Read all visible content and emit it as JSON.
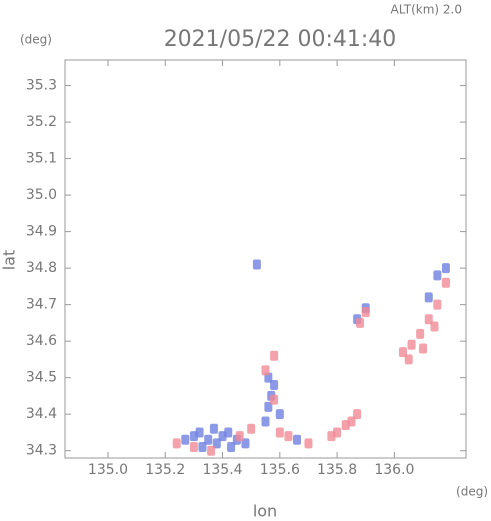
{
  "chart_data": {
    "type": "scatter",
    "title": "2021/05/22 00:41:40",
    "annotation": "ALT(km) 2.0",
    "y_unit": "(deg)",
    "x_unit": "(deg)",
    "xlabel": "lon",
    "ylabel": "lat",
    "xlim": [
      134.85,
      136.25
    ],
    "ylim": [
      34.28,
      35.37
    ],
    "xticks": [
      {
        "value": 135,
        "label": "135.0"
      },
      135.2,
      135.4,
      135.6,
      135.8,
      {
        "value": 136,
        "label": "136.0"
      }
    ],
    "yticks": [
      34.3,
      34.4,
      34.5,
      34.6,
      34.7,
      34.8,
      34.9,
      {
        "value": 35,
        "label": "35.0"
      },
      35.1,
      35.2,
      35.3
    ],
    "series": [
      {
        "color": "#6f7fe0",
        "x": [
          135.27,
          135.3,
          135.32,
          135.35,
          135.37,
          135.4,
          135.42,
          135.45,
          135.33,
          135.38,
          135.43,
          135.48,
          135.55,
          135.56,
          135.57,
          135.58,
          135.56,
          135.52,
          135.6,
          135.87,
          135.9,
          136.12,
          136.15,
          136.18,
          135.66
        ],
        "values": [
          34.33,
          34.34,
          34.35,
          34.33,
          34.36,
          34.34,
          34.35,
          34.33,
          34.31,
          34.32,
          34.31,
          34.32,
          34.38,
          34.42,
          34.45,
          34.48,
          34.5,
          34.81,
          34.4,
          34.66,
          34.69,
          34.72,
          34.78,
          34.8,
          34.33
        ]
      },
      {
        "color": "#f08a95",
        "x": [
          135.24,
          135.3,
          135.36,
          135.46,
          135.5,
          135.58,
          135.6,
          135.63,
          135.7,
          135.78,
          135.8,
          135.83,
          135.85,
          135.87,
          135.9,
          135.88,
          136.03,
          136.06,
          136.09,
          136.12,
          136.15,
          136.18,
          136.05,
          136.1,
          136.14,
          135.58,
          135.55
        ],
        "values": [
          34.32,
          34.31,
          34.3,
          34.34,
          34.36,
          34.44,
          34.35,
          34.34,
          34.32,
          34.34,
          34.35,
          34.37,
          34.38,
          34.4,
          34.68,
          34.65,
          34.57,
          34.59,
          34.62,
          34.66,
          34.7,
          34.76,
          34.55,
          34.58,
          34.64,
          34.56,
          34.52
        ]
      }
    ]
  }
}
